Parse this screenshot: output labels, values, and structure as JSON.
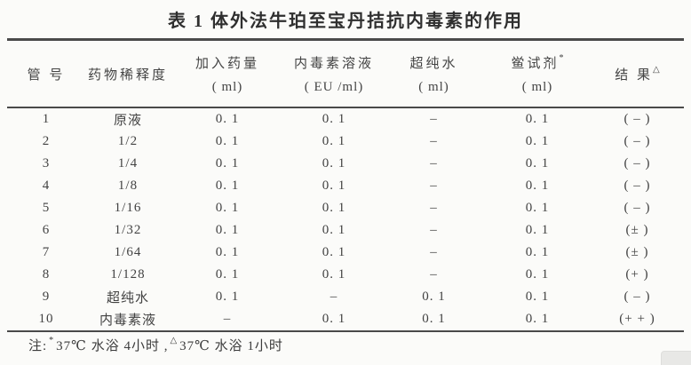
{
  "page": {
    "background_color": "#fbfbf9",
    "text_color": "#3f3f3f",
    "rule_color": "#4a4a4a"
  },
  "table": {
    "title": "表 1  体外法牛珀至宝丹拮抗内毒素的作用",
    "columns": [
      {
        "label": "管 号",
        "sup": "",
        "unit": ""
      },
      {
        "label": "药物稀释度",
        "sup": "",
        "unit": ""
      },
      {
        "label": "加入药量",
        "sup": "",
        "unit": "( ml)"
      },
      {
        "label": "内毒素溶液",
        "sup": "",
        "unit": "( EU /ml)"
      },
      {
        "label": "超纯水",
        "sup": "",
        "unit": "( ml)"
      },
      {
        "label": "鲎试剂",
        "sup": "*",
        "unit": "( ml)"
      },
      {
        "label": "结 果",
        "sup": "△",
        "unit": ""
      }
    ],
    "rows": [
      [
        "1",
        "原液",
        "0. 1",
        "0. 1",
        "–",
        "0. 1",
        "( – )"
      ],
      [
        "2",
        "1/2",
        "0. 1",
        "0. 1",
        "–",
        "0. 1",
        "( – )"
      ],
      [
        "3",
        "1/4",
        "0. 1",
        "0. 1",
        "–",
        "0. 1",
        "( – )"
      ],
      [
        "4",
        "1/8",
        "0. 1",
        "0. 1",
        "–",
        "0. 1",
        "( – )"
      ],
      [
        "5",
        "1/16",
        "0. 1",
        "0. 1",
        "–",
        "0. 1",
        "( – )"
      ],
      [
        "6",
        "1/32",
        "0. 1",
        "0. 1",
        "–",
        "0. 1",
        "(± )"
      ],
      [
        "7",
        "1/64",
        "0. 1",
        "0. 1",
        "–",
        "0. 1",
        "(± )"
      ],
      [
        "8",
        "1/128",
        "0. 1",
        "0. 1",
        "–",
        "0. 1",
        "(+ )"
      ],
      [
        "9",
        "超纯水",
        "0. 1",
        "–",
        "0. 1",
        "0. 1",
        "( – )"
      ],
      [
        "10",
        "内毒素液",
        "–",
        "0. 1",
        "0. 1",
        "0. 1",
        "(+ + )"
      ]
    ],
    "note": {
      "prefix": "注:",
      "sup1": "*",
      "text1": "37℃ 水浴 4小时 ,",
      "sup2": "△",
      "text2": "37℃ 水浴 1小时"
    }
  }
}
